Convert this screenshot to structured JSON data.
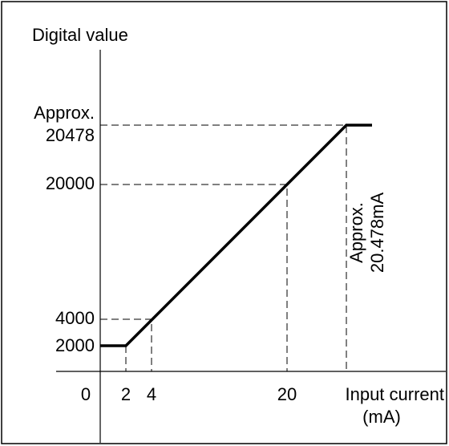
{
  "diagram": {
    "y_axis_label": "Digital value",
    "x_axis_label": [
      "Input current",
      "(mA)"
    ],
    "y_labels": {
      "upper_note": "Approx.",
      "upper": "20478",
      "full": "20000",
      "low": "4000",
      "offset": "2000"
    },
    "x_labels": {
      "origin": "0",
      "offset": "2",
      "low": "4",
      "full": "20"
    },
    "x_upper_note": [
      "Approx.",
      "20.478mA"
    ]
  }
}
